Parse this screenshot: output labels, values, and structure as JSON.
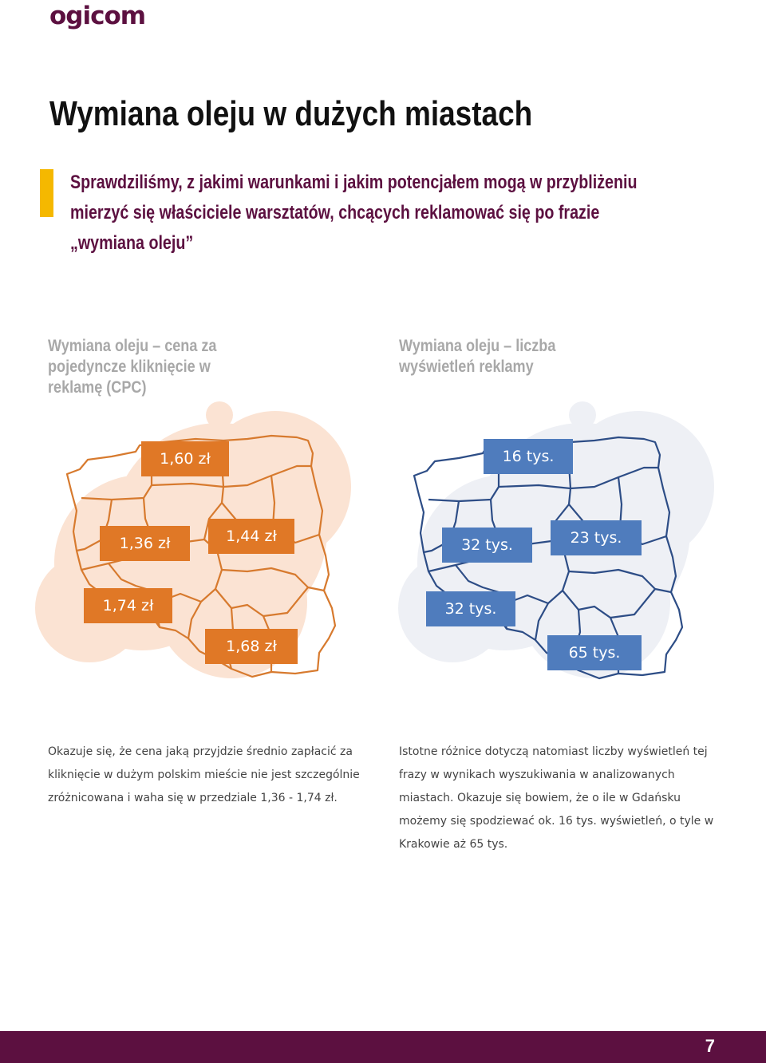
{
  "brand": {
    "logo_text": "ogicom"
  },
  "page": {
    "title": "Wymiana oleju w dużych miastach",
    "intro": "Sprawdziliśmy, z jakimi warunkami i jakim potencjałem mogą w przybliżeniu mierzyć się właściciele warsztatów, chcących reklamować się po frazie „wymiana oleju”",
    "page_number": "7"
  },
  "left_panel": {
    "subtitle": "Wymiana oleju – cena za pojedyncze kliknięcie w reklamę (CPC)",
    "prices": [
      "1,60 zł",
      "1,36 zł",
      "1,44 zł",
      "1,74 zł",
      "1,68 zł"
    ],
    "description": "Okazuje się, że cena jaką przyjdzie średnio zapłacić za kliknięcie w dużym polskim mieście nie jest szczególnie zróżnicowana i waha się w przedziale 1,36 - 1,74 zł."
  },
  "right_panel": {
    "subtitle": "Wymiana oleju – liczba wyświetleń reklamy",
    "counts": [
      "16 tys.",
      "32 tys.",
      "23 tys.",
      "32 tys.",
      "65 tys."
    ],
    "description": "Istotne różnice dotyczą natomiast liczby wyświetleń tej frazy w wynikach wyszukiwania w analizowanych miastach. Okazuje się bowiem, że o ile w Gdańsku możemy się spodziewać ok. 16 tys. wyświetleń, o tyle w Krakowie aż 65 tys."
  },
  "colors": {
    "brand": "#5c1040",
    "accent": "#f5b800",
    "orange": "#e07826",
    "blue": "#4f7cbd",
    "blob_orange": "#fbe3d3",
    "blob_blue": "#eef0f5"
  }
}
